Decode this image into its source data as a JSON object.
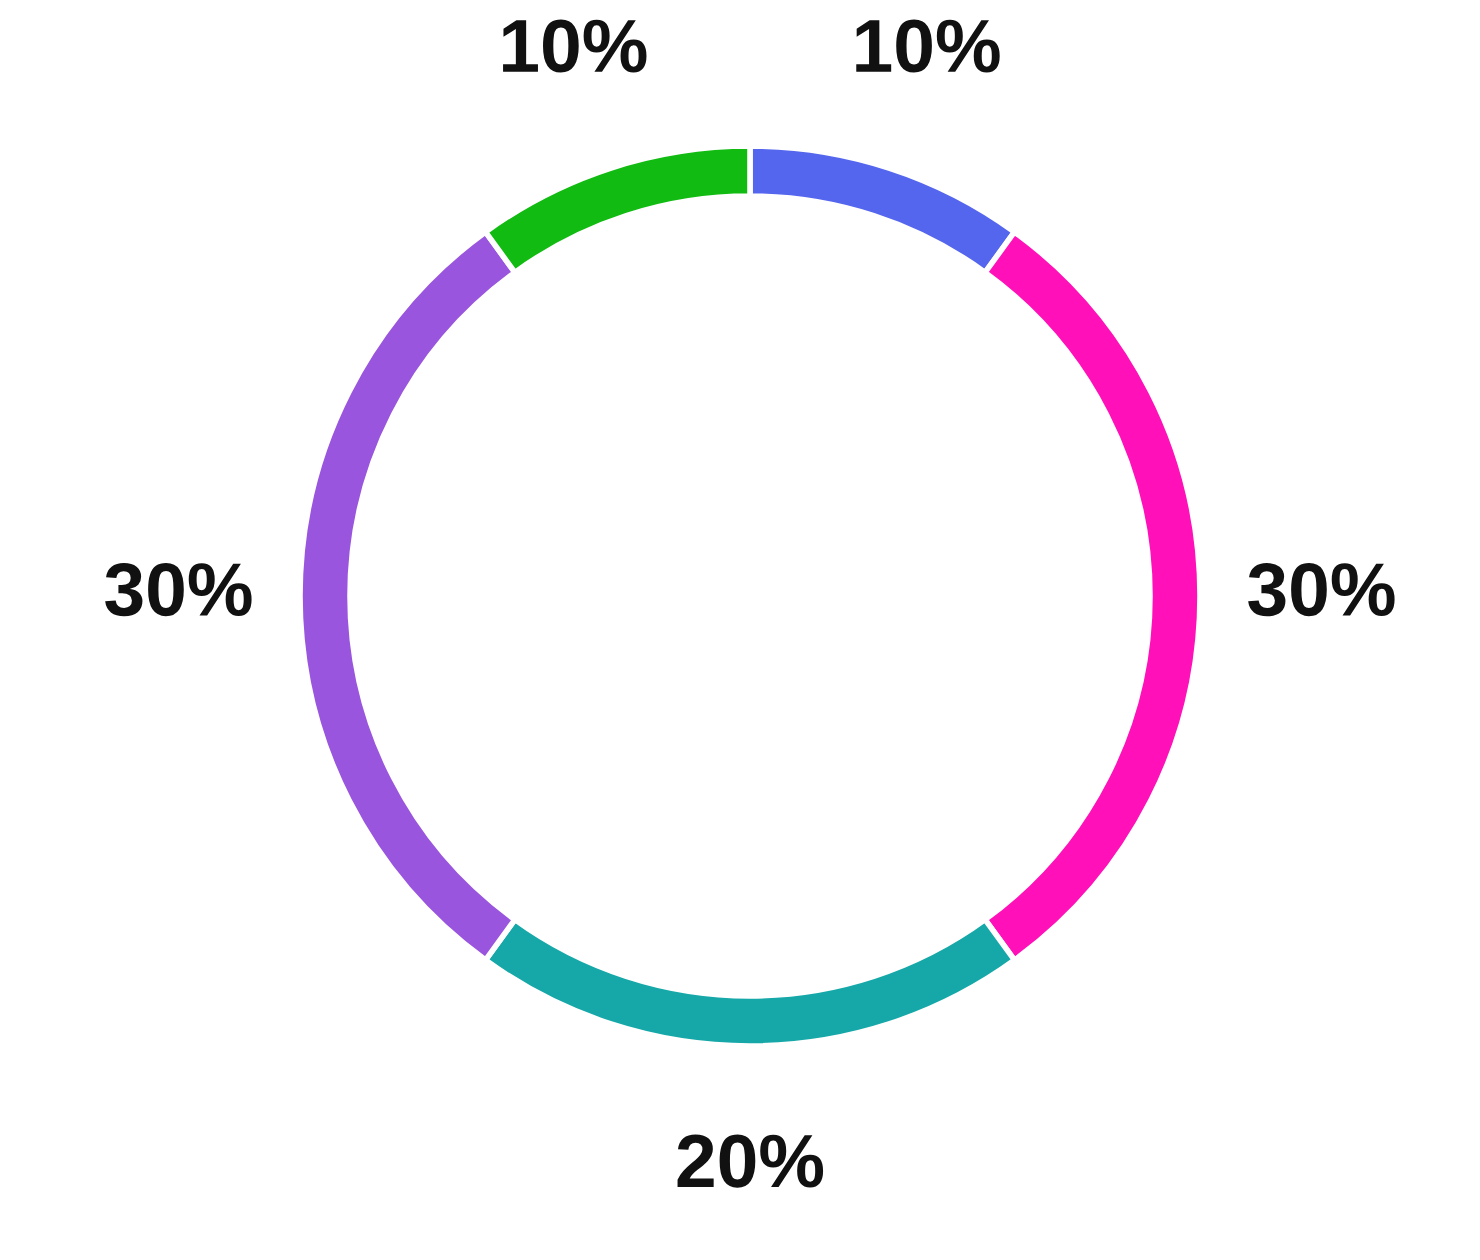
{
  "chart_data": {
    "type": "donut",
    "categories": [
      null,
      null,
      null,
      null,
      null
    ],
    "values": [
      10,
      30,
      20,
      30,
      10
    ],
    "colors": [
      "#5566ee",
      "#ff10b8",
      "#16a8a8",
      "#9955dd",
      "#11bb11"
    ],
    "value_labels": [
      "10%",
      "30%",
      "20%",
      "30%",
      "10%"
    ],
    "legend": false
  }
}
